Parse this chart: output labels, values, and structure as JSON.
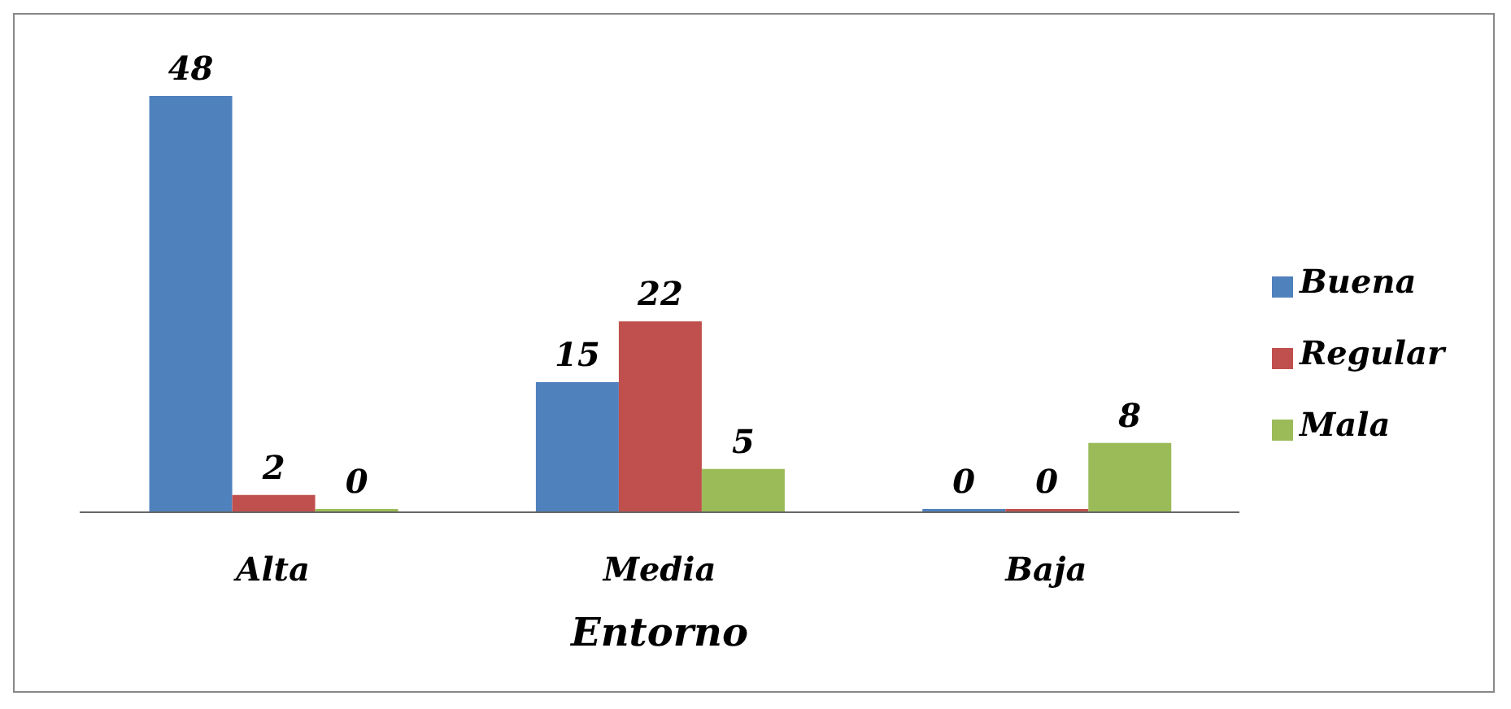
{
  "chart_data": {
    "type": "bar",
    "xlabel": "Entorno",
    "categories": [
      "Alta",
      "Media",
      "Baja"
    ],
    "series": [
      {
        "name": "Buena",
        "color": "#4f81bd",
        "values": [
          48,
          15,
          0
        ]
      },
      {
        "name": "Regular",
        "color": "#c0504d",
        "values": [
          2,
          22,
          0
        ]
      },
      {
        "name": "Mala",
        "color": "#9bbb59",
        "values": [
          0,
          5,
          8
        ]
      }
    ],
    "data_labels": true,
    "legend": "right",
    "grid": false
  }
}
